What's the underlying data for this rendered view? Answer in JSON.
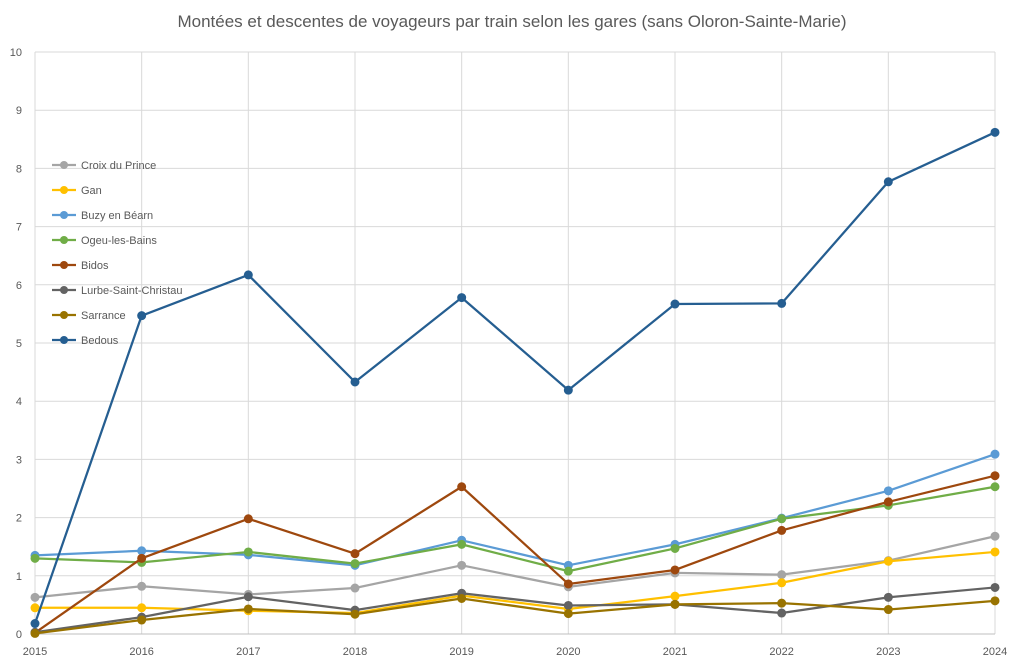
{
  "chart_data": {
    "type": "line",
    "title": "Montées et descentes de voyageurs par train selon les gares (sans Oloron-Sainte-Marie)",
    "x": [
      2015,
      2016,
      2017,
      2018,
      2019,
      2020,
      2021,
      2022,
      2023,
      2024
    ],
    "ylim": [
      0,
      10
    ],
    "yticks": [
      0,
      1,
      2,
      3,
      4,
      5,
      6,
      7,
      8,
      9,
      10
    ],
    "grid": true,
    "legend_position": "left",
    "series": [
      {
        "name": "Croix du Prince",
        "color": "#A5A5A5",
        "values": [
          0.63,
          0.82,
          0.68,
          0.79,
          1.18,
          0.81,
          1.05,
          1.02,
          1.26,
          1.68
        ]
      },
      {
        "name": "Gan",
        "color": "#FFC000",
        "values": [
          0.45,
          0.45,
          0.4,
          0.36,
          0.66,
          0.43,
          0.65,
          0.88,
          1.25,
          1.41
        ]
      },
      {
        "name": "Buzy en Béarn",
        "color": "#5B9BD5",
        "values": [
          1.35,
          1.43,
          1.36,
          1.18,
          1.61,
          1.18,
          1.54,
          1.99,
          2.46,
          3.09
        ]
      },
      {
        "name": "Ogeu-les-Bains",
        "color": "#70AD47",
        "values": [
          1.3,
          1.23,
          1.41,
          1.21,
          1.54,
          1.08,
          1.47,
          1.98,
          2.21,
          2.53
        ]
      },
      {
        "name": "Bidos",
        "color": "#9E480E",
        "values": [
          0.02,
          1.3,
          1.98,
          1.38,
          2.53,
          0.86,
          1.1,
          1.78,
          2.27,
          2.72
        ]
      },
      {
        "name": "Lurbe-Saint-Christau",
        "color": "#636363",
        "values": [
          0.03,
          0.29,
          0.64,
          0.41,
          0.7,
          0.49,
          0.51,
          0.36,
          0.63,
          0.8
        ]
      },
      {
        "name": "Sarrance",
        "color": "#997300",
        "values": [
          0.01,
          0.24,
          0.43,
          0.34,
          0.61,
          0.35,
          0.51,
          0.53,
          0.42,
          0.57
        ]
      },
      {
        "name": "Bedous",
        "color": "#255E91",
        "values": [
          0.18,
          5.47,
          6.17,
          4.33,
          5.78,
          4.19,
          5.67,
          5.68,
          7.77,
          8.62
        ]
      }
    ]
  }
}
